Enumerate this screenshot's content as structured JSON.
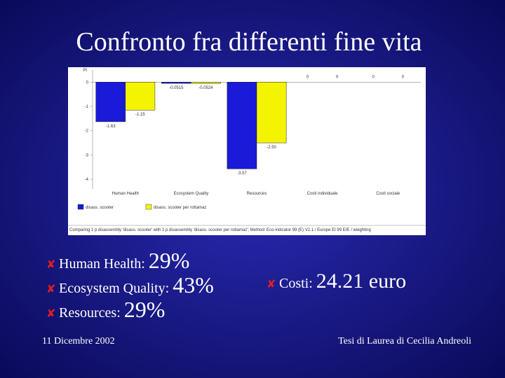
{
  "slide": {
    "title": "Confronto fra differenti fine vita",
    "bullets": [
      {
        "label": "Human Health:",
        "value": "29%"
      },
      {
        "label": "Ecosystem Quality:",
        "value": "43%"
      },
      {
        "label": "Resources:",
        "value": "29%"
      }
    ],
    "costi": {
      "label": "Costi:",
      "value": "24.21 euro"
    },
    "date": "11 Dicembre 2002",
    "author": "Tesi di Laurea di Cecilia Andreoli"
  },
  "chart_data": {
    "type": "bar",
    "y_label": "Pt",
    "categories": [
      "Human Health",
      "Ecosystem Quality",
      "Resources",
      "Costi individuale",
      "Costi sociale"
    ],
    "series": [
      {
        "name": "disass. scooter",
        "color": "#1a1ad8",
        "values": [
          -1.63,
          -0.0515,
          -3.57,
          0,
          0
        ],
        "value_labels": [
          "-1.63",
          "-0.0515",
          "-3.57",
          "0",
          "0"
        ]
      },
      {
        "name": "disass. scooter per rottamaz",
        "color": "#f4f400",
        "values": [
          -1.15,
          -0.0524,
          -2.5,
          0,
          0
        ],
        "value_labels": [
          "-1.15",
          "-0.0524",
          "-2.50",
          "0",
          "0"
        ]
      }
    ],
    "ylim": [
      -4.4,
      0.5
    ],
    "yticks": [
      0,
      -1,
      -2,
      -3,
      -4
    ],
    "caption": "Comparing 1 p disassembly 'disass. scooter' with 1 p disassembly 'disass. scooter per rottamaz'; Method: Eco-indicator 99 (E) V2.1 / Europe EI 99 E/E / weighting"
  }
}
